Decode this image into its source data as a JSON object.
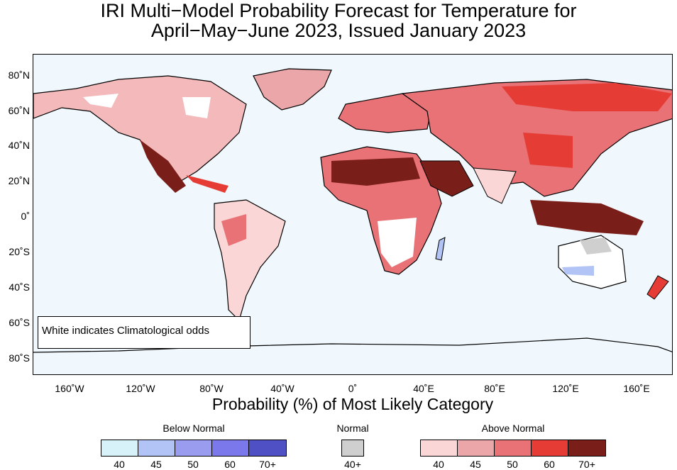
{
  "title_line1": "IRI Multi−Model Probability Forecast for Temperature for",
  "title_line2": "April−May−June 2023, Issued January 2023",
  "lat_labels": [
    "80˚N",
    "60˚N",
    "40˚N",
    "20˚N",
    "0˚",
    "20˚S",
    "40˚S",
    "60˚S",
    "80˚S"
  ],
  "lon_labels": [
    "160˚W",
    "120˚W",
    "80˚W",
    "40˚W",
    "0˚",
    "40˚E",
    "80˚E",
    "120˚E",
    "160˚E"
  ],
  "note": "White indicates Climatological odds",
  "xaxis_title": "Probability (%) of Most Likely Category",
  "legend": {
    "below_label": "Below Normal",
    "normal_label": "Normal",
    "above_label": "Above Normal",
    "below_values": [
      "40",
      "45",
      "50",
      "60",
      "70+"
    ],
    "normal_values": [
      "40+"
    ],
    "above_values": [
      "40",
      "45",
      "50",
      "60",
      "70+"
    ],
    "below_colors": [
      "#d7f2f8",
      "#b2c4f5",
      "#9a9cf0",
      "#7b78ec",
      "#4f50c4"
    ],
    "normal_colors": [
      "#cfcfcf"
    ],
    "above_colors": [
      "#fbd6d6",
      "#eaa6a8",
      "#e97276",
      "#e53d35",
      "#7a1e1a"
    ]
  }
}
